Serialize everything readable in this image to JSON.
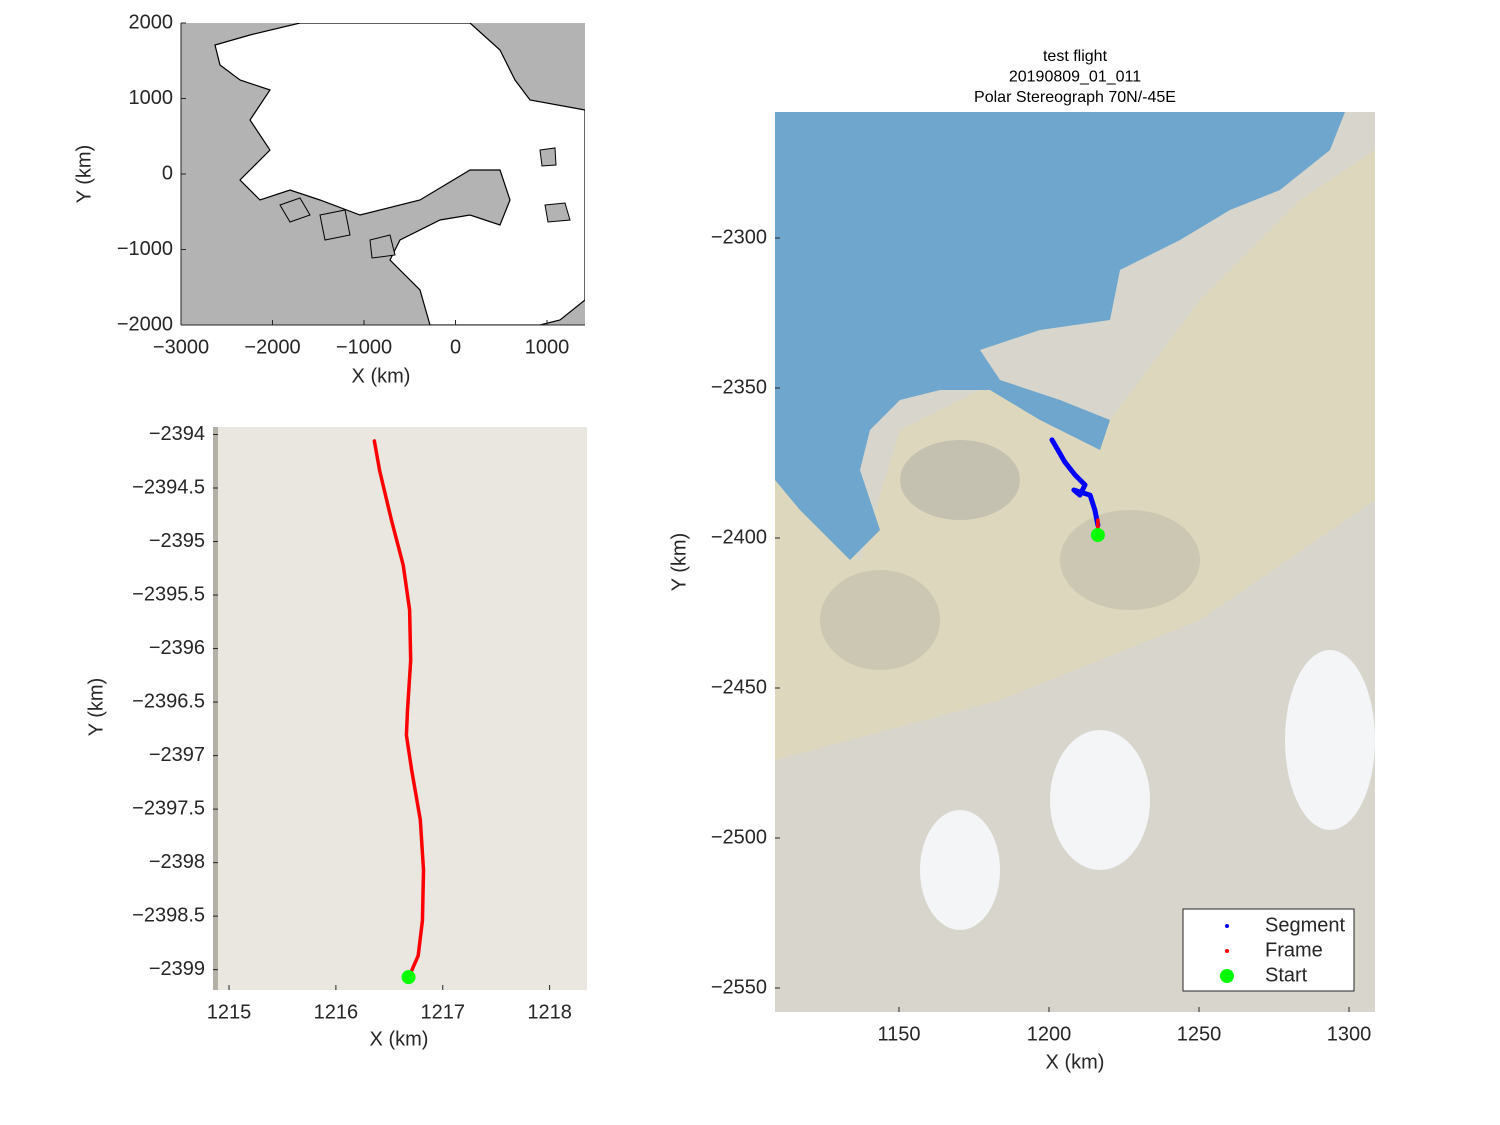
{
  "chart_data": [
    {
      "type": "map",
      "xlabel": "X (km)",
      "ylabel": "Y (km)",
      "xlim": [
        -3000,
        1415
      ],
      "ylim": [
        -2000,
        2000
      ],
      "xticks": [
        {
          "value": -3000,
          "label": "−3000"
        },
        {
          "value": -2000,
          "label": "−2000"
        },
        {
          "value": -1000,
          "label": "−1000"
        },
        0,
        1000
      ],
      "yticks": [
        {
          "value": -2000,
          "label": "−2000"
        },
        {
          "value": -1000,
          "label": "−1000"
        },
        0,
        1000,
        2000
      ]
    },
    {
      "type": "line",
      "xlabel": "X (km)",
      "ylabel": "Y (km)",
      "xlim": [
        1214.85,
        1218.35
      ],
      "ylim": [
        -2399.19,
        -2393.93
      ],
      "xticks": [
        1215,
        1216,
        1217,
        1218
      ],
      "yticks": [
        {
          "value": -2394,
          "label": "−2394"
        },
        {
          "value": -2394.5,
          "label": "−2394.5"
        },
        {
          "value": -2395,
          "label": "−2395"
        },
        {
          "value": -2395.5,
          "label": "−2395.5"
        },
        {
          "value": -2396,
          "label": "−2396"
        },
        {
          "value": -2396.5,
          "label": "−2396.5"
        },
        {
          "value": -2397,
          "label": "−2397"
        },
        {
          "value": -2397.5,
          "label": "−2397.5"
        },
        {
          "value": -2398,
          "label": "−2398"
        },
        {
          "value": -2398.5,
          "label": "−2398.5"
        },
        {
          "value": -2399,
          "label": "−2399"
        }
      ],
      "series": [
        {
          "color": "#ff0000",
          "style": "line",
          "x": [
            1216.36,
            1216.41,
            1216.52,
            1216.63,
            1216.69,
            1216.7,
            1216.67,
            1216.66,
            1216.71,
            1216.79,
            1216.82,
            1216.81,
            1216.77,
            1216.7
          ],
          "values": [
            -2394.06,
            -2394.34,
            -2394.8,
            -2395.22,
            -2395.64,
            -2396.11,
            -2396.58,
            -2396.81,
            -2397.14,
            -2397.6,
            -2398.07,
            -2398.54,
            -2398.87,
            -2399.03
          ]
        },
        {
          "color": "#00ff00",
          "style": "marker",
          "x": [
            1216.68
          ],
          "values": [
            -2399.07
          ]
        }
      ]
    },
    {
      "type": "line",
      "title": [
        "test flight",
        "20190809_01_011",
        "Polar Stereograph 70N/-45E"
      ],
      "xlabel": "X (km)",
      "ylabel": "Y (km)",
      "xlim": [
        1108.67,
        1308.67
      ],
      "ylim": [
        -2558,
        -2258
      ],
      "xticks": [
        1150,
        1200,
        1250,
        1300
      ],
      "yticks": [
        {
          "value": -2300,
          "label": "−2300"
        },
        {
          "value": -2350,
          "label": "−2350"
        },
        {
          "value": -2400,
          "label": "−2400"
        },
        {
          "value": -2450,
          "label": "−2450"
        },
        {
          "value": -2500,
          "label": "−2500"
        },
        {
          "value": -2550,
          "label": "−2550"
        }
      ],
      "legend": "southeast",
      "series": [
        {
          "name": "Segment",
          "color": "#0000ff",
          "style": "line",
          "x": [
            1201,
            1203,
            1205.3,
            1208.7,
            1212,
            1210.3,
            1208.3,
            1213.7,
            1215.3,
            1216.3
          ],
          "values": [
            -2367.3,
            -2370.7,
            -2374.7,
            -2379,
            -2382.3,
            -2385.7,
            -2384,
            -2385.7,
            -2390.7,
            -2395.7
          ]
        },
        {
          "name": "Frame",
          "color": "#ff0000",
          "style": "line",
          "x": [
            1216.3,
            1216.3
          ],
          "values": [
            -2394,
            -2399
          ]
        },
        {
          "name": "Start",
          "color": "#00ff00",
          "style": "marker",
          "x": [
            1216.3
          ],
          "values": [
            -2399
          ]
        }
      ]
    }
  ]
}
